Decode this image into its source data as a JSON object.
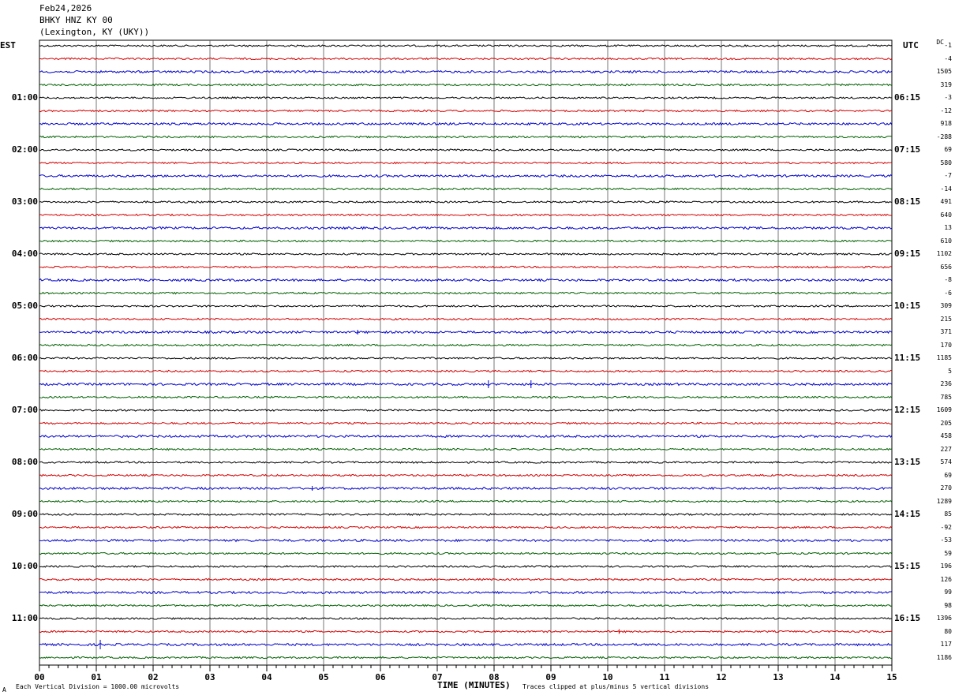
{
  "header": {
    "date": "Feb24,2026",
    "station": "BHKY HNZ KY 00",
    "location": "(Lexington, KY (UKY))"
  },
  "tz": {
    "left": "EST",
    "right": "UTC",
    "dc_label": "DC"
  },
  "chart_data": {
    "type": "line",
    "xlabel": "TIME (MINUTES)",
    "xlim": [
      0,
      15
    ],
    "x_ticks": [
      "00",
      "01",
      "02",
      "03",
      "04",
      "05",
      "06",
      "07",
      "08",
      "09",
      "10",
      "11",
      "12",
      "13",
      "14",
      "15"
    ],
    "rows_per_hour": 4,
    "trace_colors": [
      "#000000",
      "#d40000",
      "#0000cc",
      "#006000"
    ],
    "left_hour_labels": [
      "01:00",
      "02:00",
      "03:00",
      "04:00",
      "05:00",
      "06:00",
      "07:00",
      "08:00",
      "09:00",
      "10:00",
      "11:00"
    ],
    "right_hour_labels": [
      "06:15",
      "07:15",
      "08:15",
      "09:15",
      "10:15",
      "11:15",
      "12:15",
      "13:15",
      "14:15",
      "15:15",
      "16:15"
    ],
    "dc_offsets": [
      "-1",
      "-4",
      "1505",
      "319",
      "-3",
      "-12",
      "918",
      "-288",
      "69",
      "580",
      "-7",
      "-14",
      "491",
      "640",
      "13",
      "610",
      "1102",
      "656",
      "-8",
      "-6",
      "309",
      "215",
      "371",
      "170",
      "1185",
      "5",
      "236",
      "785",
      "1609",
      "205",
      "458",
      "227",
      "574",
      "69",
      "270",
      "1289",
      "85",
      "-92",
      "-53",
      "59",
      "196",
      "126",
      "99",
      "98",
      "1396",
      "80",
      "117",
      "1186"
    ],
    "spikes": [
      {
        "row": 22,
        "minute": 5.6,
        "amp": 3
      },
      {
        "row": 26,
        "minute": 7.9,
        "amp": 5
      },
      {
        "row": 26,
        "minute": 8.65,
        "amp": 5
      },
      {
        "row": 46,
        "minute": 1.07,
        "amp": 6
      },
      {
        "row": 45,
        "minute": 10.2,
        "amp": 3
      },
      {
        "row": 34,
        "minute": 4.8,
        "amp": 3
      }
    ]
  },
  "footer": {
    "scale_note": "Each Vertical Division = 1000.00 microvolts",
    "clip_note": "Traces clipped at plus/minus 5 vertical divisions",
    "corner_mark": "A"
  }
}
